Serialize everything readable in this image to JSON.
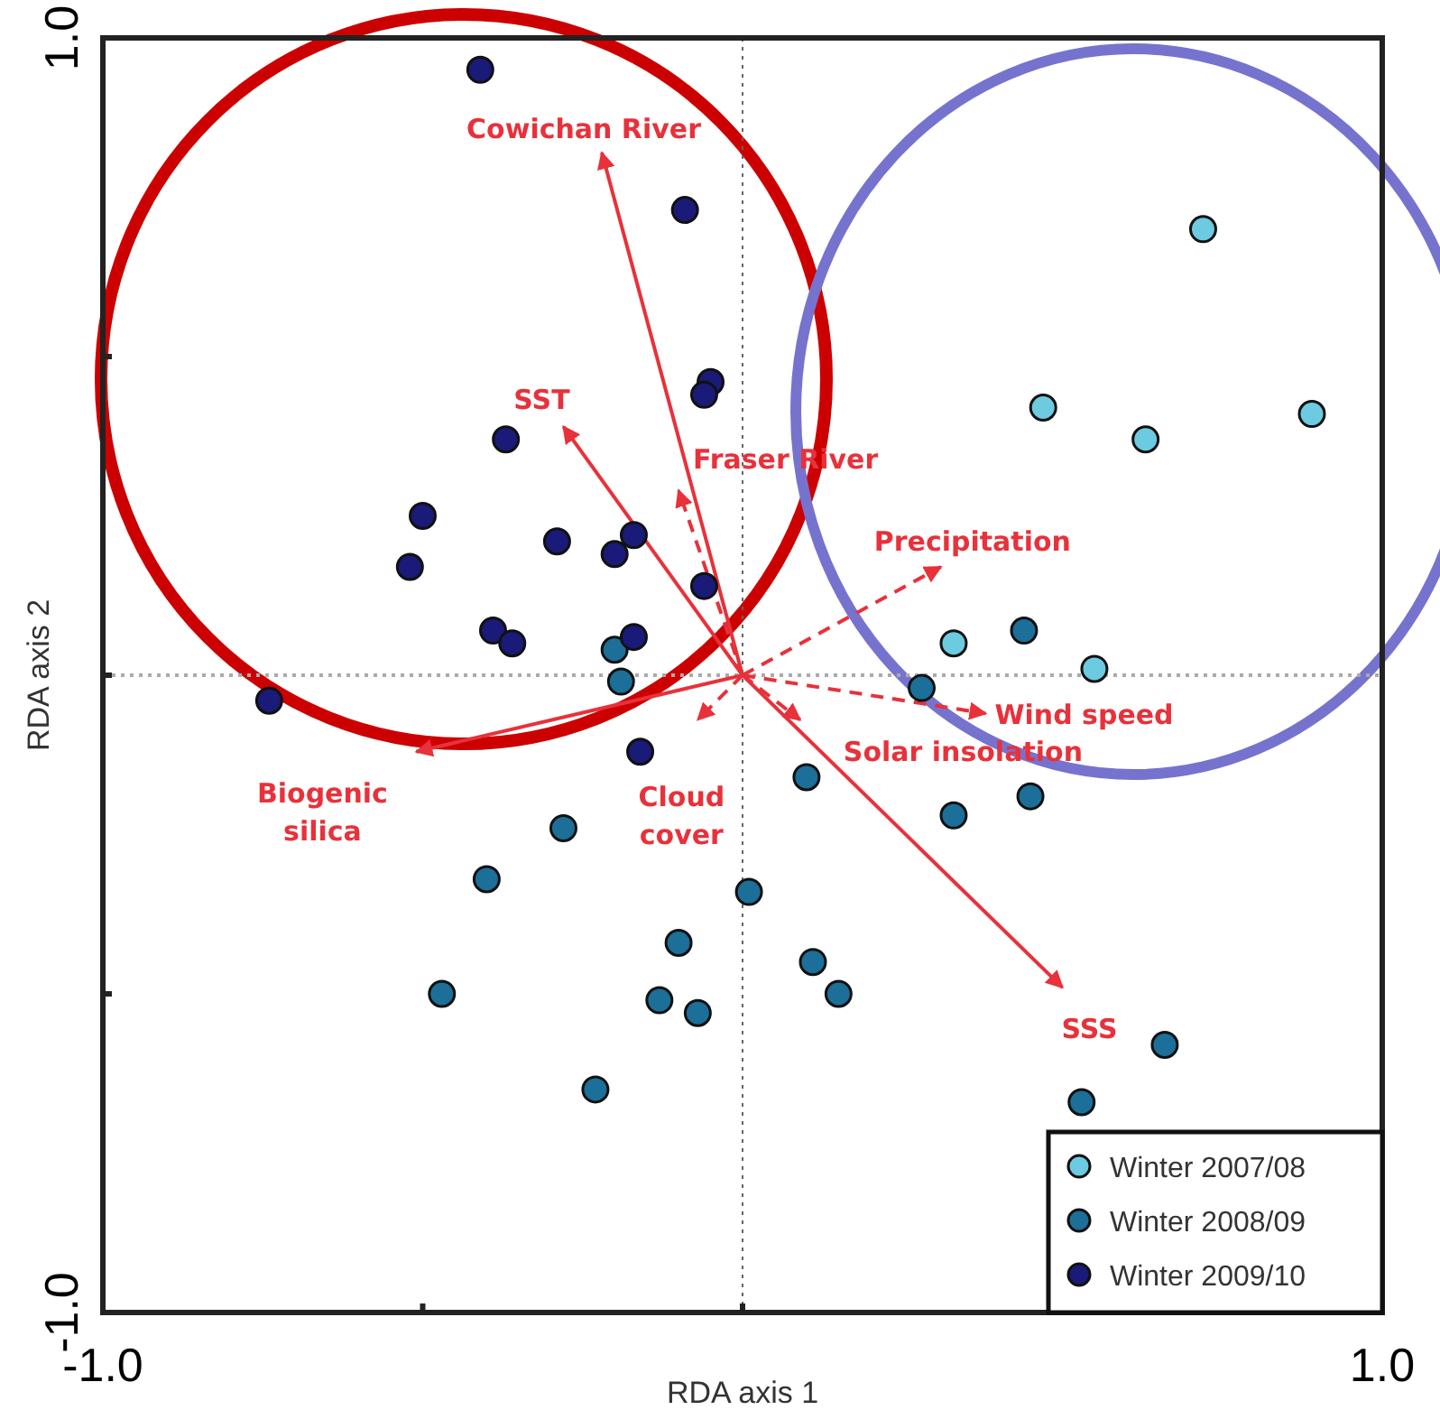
{
  "chart_data": {
    "type": "scatter",
    "xlabel": "RDA axis 1",
    "ylabel": "RDA axis 2",
    "xlim": [
      -1,
      1
    ],
    "ylim": [
      -1,
      1
    ],
    "xticks": [
      {
        "value": -1,
        "label": "-1.0"
      },
      {
        "value": -0.5,
        "label": null
      },
      {
        "value": 0,
        "label": null
      },
      {
        "value": 0.5,
        "label": null
      },
      {
        "value": 1,
        "label": "1.0"
      }
    ],
    "yticks": [
      {
        "value": -1,
        "label": "-1.0"
      },
      {
        "value": -0.5,
        "label": null
      },
      {
        "value": 0,
        "label": null
      },
      {
        "value": 0.5,
        "label": null
      },
      {
        "value": 1,
        "label": "1.0"
      }
    ],
    "grid": false,
    "legend": "bottom right",
    "marker": "circle",
    "ref_lines": [
      {
        "axis": "x",
        "value": 0,
        "color": "#666666",
        "line_style": "dotted"
      },
      {
        "axis": "y",
        "value": 0,
        "color": "#aaaaaa",
        "line_style": "dotted"
      }
    ],
    "series": [
      {
        "name": "Winter 2007/08",
        "type": "scatter",
        "color": "#6ccbe0",
        "x": [
          0.72,
          0.47,
          0.63,
          0.89,
          0.33,
          0.55
        ],
        "values": [
          0.7,
          0.42,
          0.37,
          0.41,
          0.05,
          0.01
        ]
      },
      {
        "name": "Winter 2008/09",
        "color": "#1b6f98",
        "x": [
          0.44,
          -0.2,
          -0.19,
          -0.28,
          -0.4,
          -0.47,
          -0.23,
          -0.1,
          -0.13,
          -0.07,
          0.01,
          0.1,
          0.33,
          0.45,
          0.11,
          0.15,
          0.66,
          0.53,
          0.28
        ],
        "values": [
          0.07,
          0.04,
          -0.01,
          -0.24,
          -0.32,
          -0.5,
          -0.65,
          -0.42,
          -0.51,
          -0.53,
          -0.34,
          -0.16,
          -0.22,
          -0.19,
          -0.45,
          -0.5,
          -0.58,
          -0.67,
          -0.02
        ]
      },
      {
        "name": "Winter 2009/10",
        "color": "#1a1a78",
        "x": [
          -0.41,
          -0.09,
          -0.05,
          -0.06,
          -0.37,
          -0.5,
          -0.52,
          -0.29,
          -0.17,
          -0.2,
          -0.06,
          -0.39,
          -0.36,
          -0.17,
          -0.74,
          -0.16
        ],
        "values": [
          0.95,
          0.73,
          0.46,
          0.44,
          0.37,
          0.25,
          0.17,
          0.21,
          0.22,
          0.19,
          0.14,
          0.07,
          0.05,
          0.06,
          -0.04,
          -0.12
        ]
      },
      {
        "name": "Cowichan River",
        "type": "line",
        "marker": "none",
        "color": "#e8313a",
        "line_style": "solid",
        "x": [
          0,
          -0.22
        ],
        "values": [
          0,
          0.82
        ]
      },
      {
        "name": "SST",
        "type": "line",
        "marker": "none",
        "color": "#e8313a",
        "line_style": "solid",
        "x": [
          0,
          -0.28
        ],
        "values": [
          0,
          0.39
        ]
      },
      {
        "name": "Fraser River",
        "type": "line",
        "marker": "none",
        "color": "#e8313a",
        "line_style": "dashed",
        "x": [
          0,
          -0.1
        ],
        "values": [
          0,
          0.29
        ]
      },
      {
        "name": "Precipitation",
        "type": "line",
        "marker": "none",
        "color": "#e8313a",
        "line_style": "dashed",
        "x": [
          0,
          0.31
        ],
        "values": [
          0,
          0.17
        ]
      },
      {
        "name": "Wind speed",
        "type": "line",
        "marker": "none",
        "color": "#e8313a",
        "line_style": "dashed",
        "x": [
          0,
          0.38
        ],
        "values": [
          0,
          -0.06
        ]
      },
      {
        "name": "Solar insolation",
        "type": "line",
        "marker": "none",
        "color": "#e8313a",
        "line_style": "dashed",
        "x": [
          0,
          0.09
        ],
        "values": [
          0,
          -0.07
        ]
      },
      {
        "name": "SSS",
        "type": "line",
        "marker": "none",
        "color": "#e8313a",
        "line_style": "solid",
        "x": [
          0,
          0.5
        ],
        "values": [
          0,
          -0.49
        ]
      },
      {
        "name": "Biogenic silica",
        "type": "line",
        "marker": "none",
        "color": "#e8313a",
        "line_style": "solid",
        "x": [
          0,
          -0.51
        ],
        "values": [
          0,
          -0.12
        ]
      },
      {
        "name": "Cloud cover",
        "type": "line",
        "marker": "none",
        "color": "#e8313a",
        "line_style": "dashed",
        "x": [
          0,
          -0.07
        ],
        "values": [
          0,
          -0.07
        ]
      }
    ]
  }
}
